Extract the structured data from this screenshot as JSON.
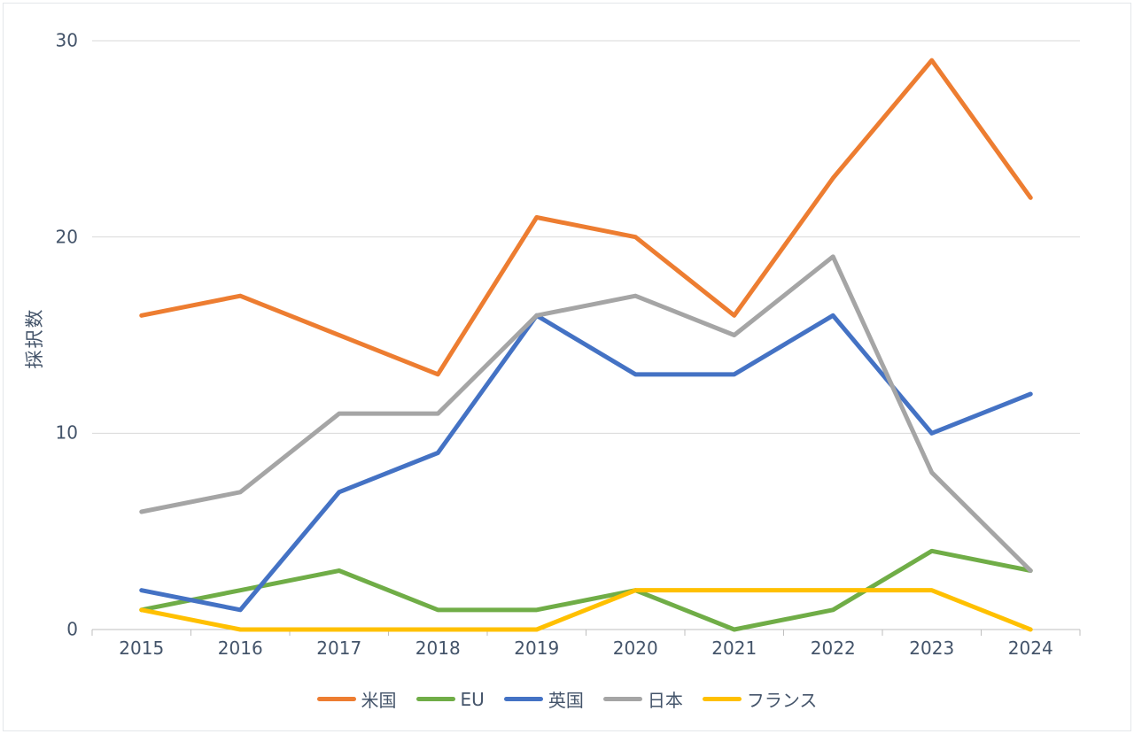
{
  "chart_data": {
    "type": "line",
    "x": [
      "2015",
      "2016",
      "2017",
      "2018",
      "2019",
      "2020",
      "2021",
      "2022",
      "2023",
      "2024"
    ],
    "series": [
      {
        "name": "米国",
        "color": "#ED7D31",
        "values": [
          16,
          17,
          15,
          13,
          21,
          20,
          16,
          23,
          29,
          22
        ]
      },
      {
        "name": "EU",
        "color": "#70AD47",
        "values": [
          1,
          2,
          3,
          1,
          1,
          2,
          0,
          1,
          4,
          3
        ]
      },
      {
        "name": "英国",
        "color": "#4472C4",
        "values": [
          2,
          1,
          7,
          9,
          16,
          13,
          13,
          16,
          10,
          12
        ]
      },
      {
        "name": "日本",
        "color": "#A5A5A5",
        "values": [
          6,
          7,
          11,
          11,
          16,
          17,
          15,
          19,
          8,
          3
        ]
      },
      {
        "name": "フランス",
        "color": "#FFC000",
        "values": [
          1,
          0,
          0,
          0,
          0,
          2,
          2,
          2,
          2,
          0
        ]
      }
    ],
    "title": "",
    "xlabel": "",
    "ylabel": "採択数",
    "ylim": [
      0,
      30
    ],
    "yticks": [
      0,
      10,
      20,
      30
    ],
    "grid": true,
    "legend_position": "bottom"
  },
  "style_colors": {
    "text": "#44546A",
    "gridline": "#D9D9D9",
    "axis_line": "#BFBFBF",
    "background": "#FFFFFF"
  }
}
